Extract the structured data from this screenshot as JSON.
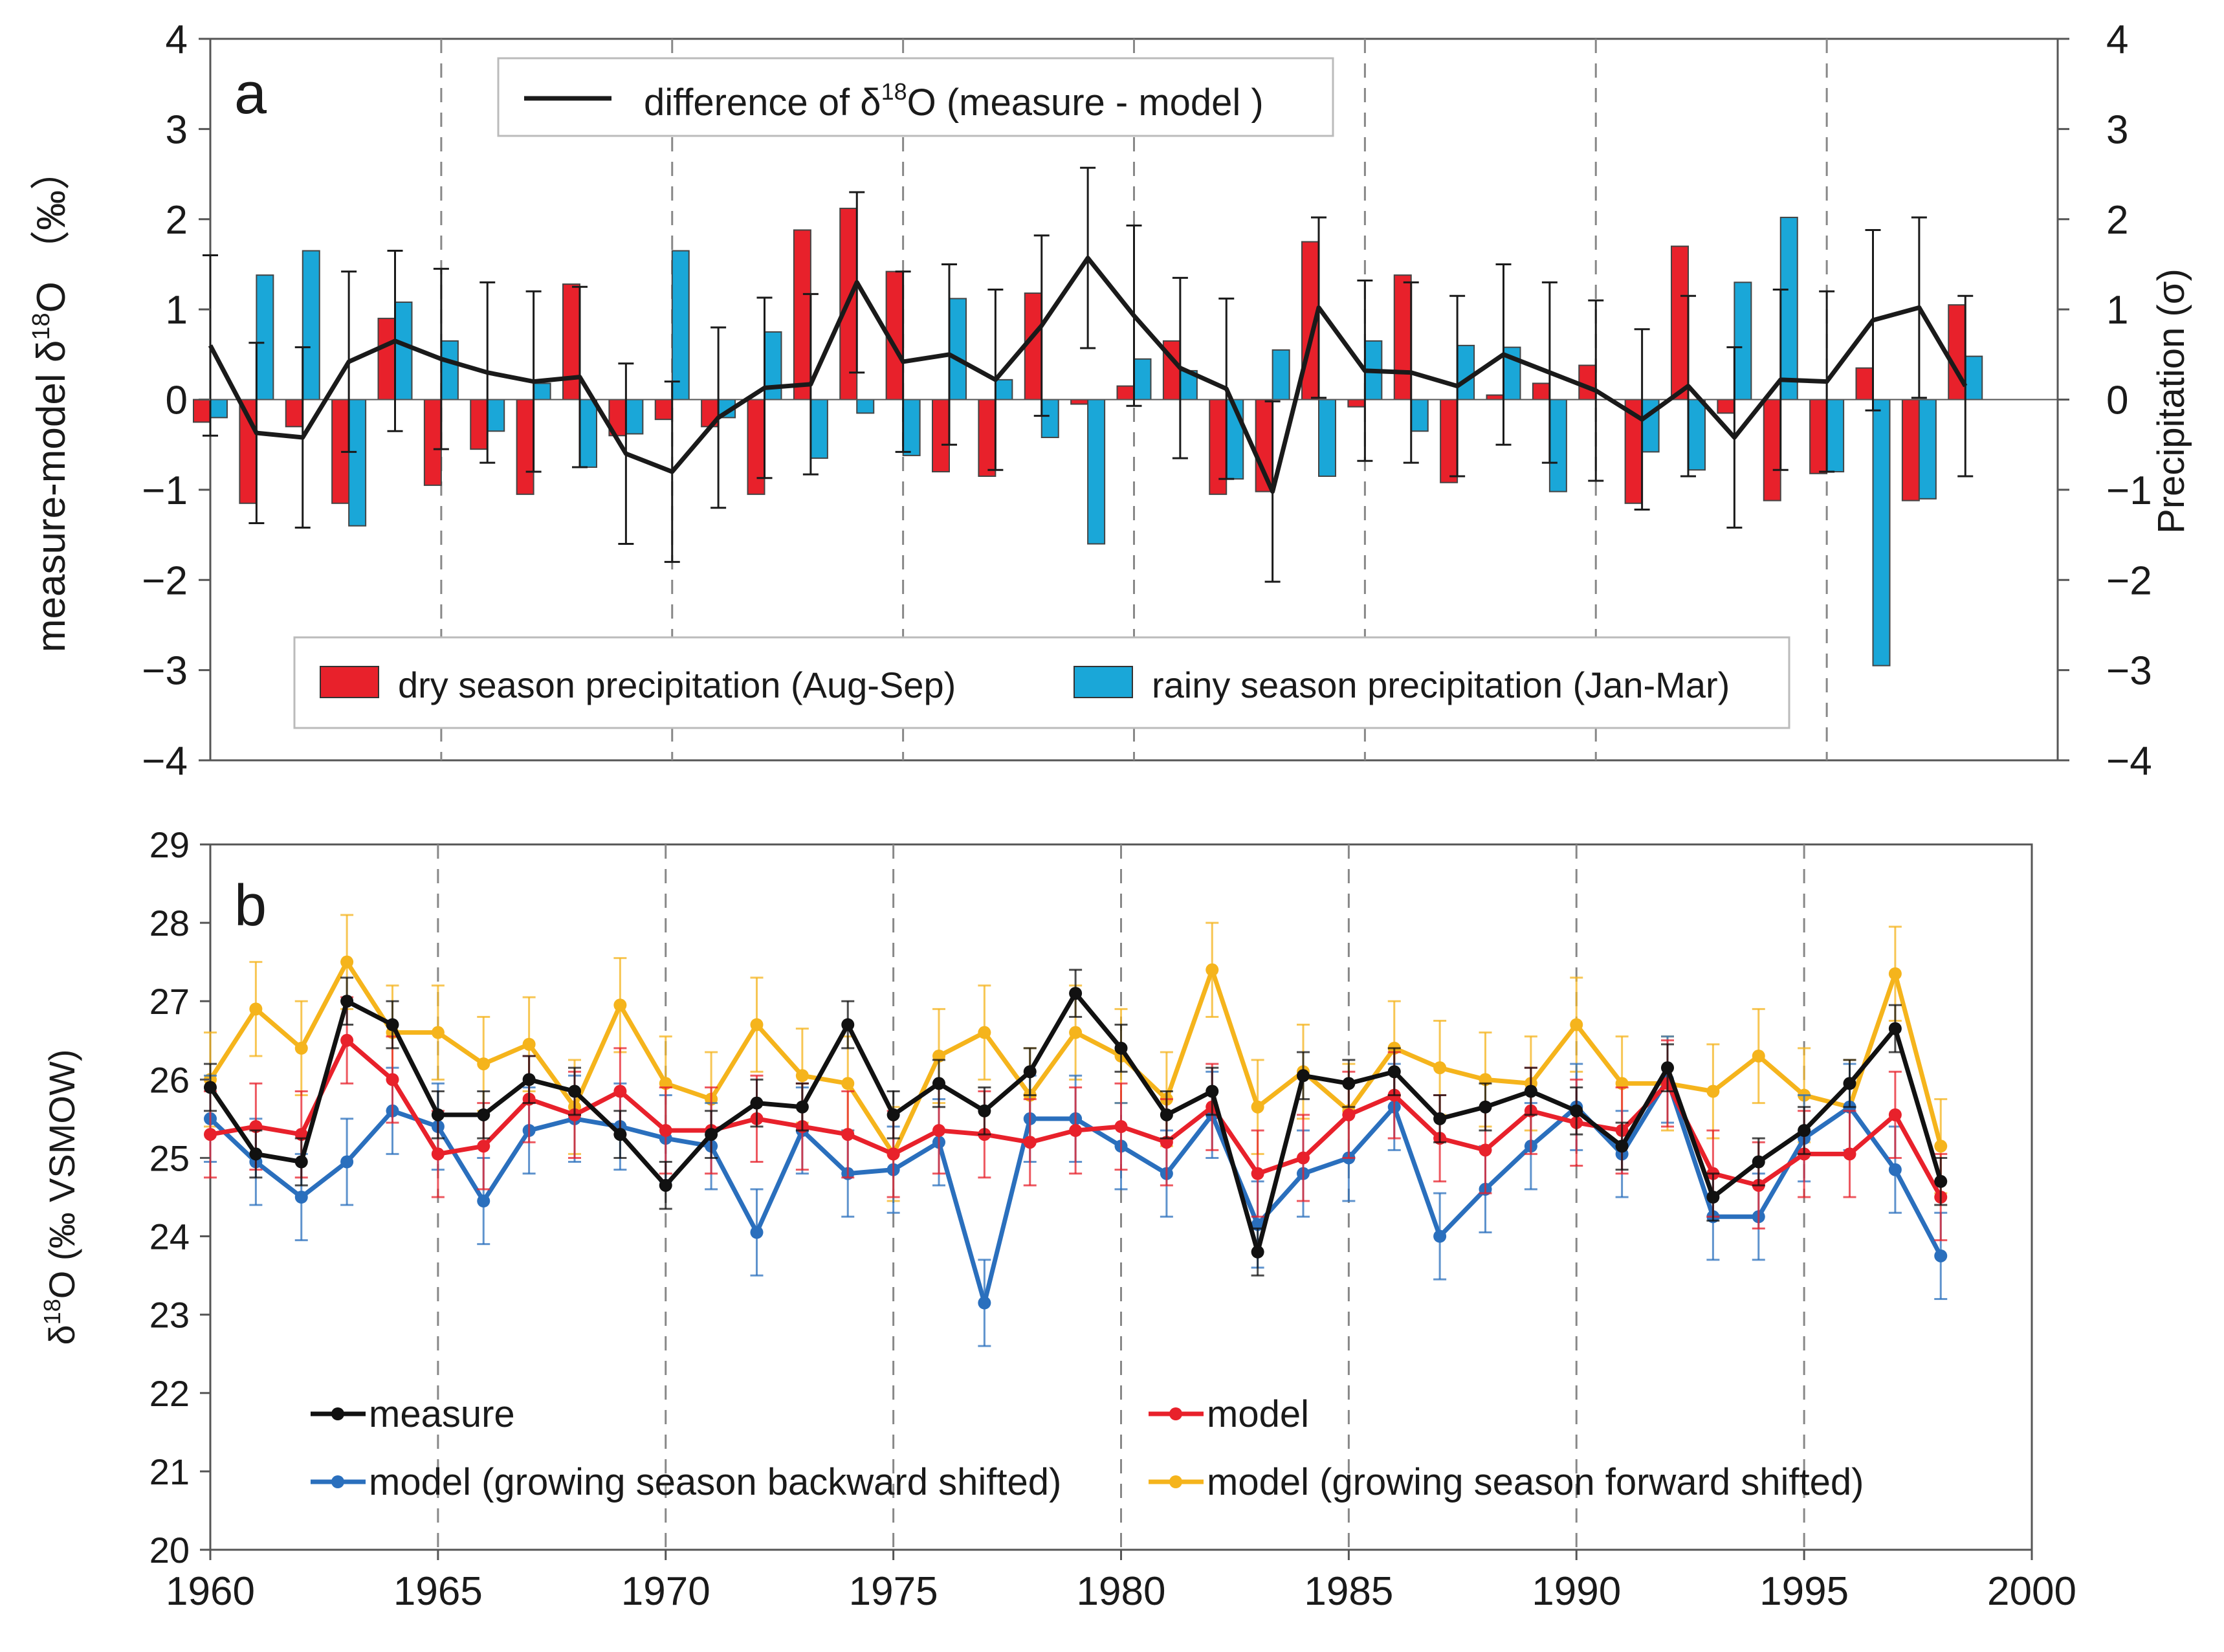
{
  "chart_data": [
    {
      "panel": "a",
      "type": "bar",
      "panel_label": "a",
      "ylabel_left": "measure-model δ¹⁸O （‰）",
      "ylabel_left_parts": [
        "measure-model  δ",
        "18",
        "O  （‰）"
      ],
      "ylabel_right": "Precipitation (σ)",
      "ylim": [
        -4,
        4
      ],
      "yticks": [
        -4,
        -3,
        -2,
        -1,
        0,
        1,
        2,
        3,
        4
      ],
      "ytick_labels": [
        "−4",
        "−3",
        "−2",
        "−1",
        "0",
        "1",
        "2",
        "3",
        "4"
      ],
      "xlim": [
        1960,
        2000
      ],
      "years": [
        1960,
        1961,
        1962,
        1963,
        1964,
        1965,
        1966,
        1967,
        1968,
        1969,
        1970,
        1971,
        1972,
        1973,
        1974,
        1975,
        1976,
        1977,
        1978,
        1979,
        1980,
        1981,
        1982,
        1983,
        1984,
        1985,
        1986,
        1987,
        1988,
        1989,
        1990,
        1991,
        1992,
        1993,
        1994,
        1995,
        1996,
        1997,
        1998
      ],
      "series": [
        {
          "name": "dry season precipitation (Aug-Sep)",
          "kind": "bar",
          "color": "#e8212b",
          "values": [
            -0.25,
            -1.15,
            -0.3,
            -1.15,
            0.9,
            -0.95,
            -0.55,
            -1.05,
            1.28,
            -0.4,
            -0.22,
            -0.3,
            -1.05,
            1.88,
            2.12,
            1.42,
            -0.8,
            -0.85,
            1.18,
            -0.05,
            0.15,
            0.65,
            -1.05,
            -1.02,
            1.75,
            -0.08,
            1.38,
            -0.92,
            0.05,
            0.18,
            0.38,
            -1.15,
            1.7,
            -0.15,
            -1.12,
            -0.82,
            0.35,
            -1.12,
            1.05
          ]
        },
        {
          "name": "rainy season precipitation (Jan-Mar)",
          "kind": "bar",
          "color": "#1aa7d8",
          "values": [
            -0.2,
            1.38,
            1.65,
            -1.4,
            1.08,
            0.65,
            -0.35,
            0.18,
            -0.75,
            -0.38,
            1.65,
            -0.2,
            0.75,
            -0.65,
            -0.15,
            -0.62,
            1.12,
            0.22,
            -0.42,
            -1.6,
            0.45,
            0.32,
            -0.88,
            0.55,
            -0.85,
            0.65,
            -0.35,
            0.6,
            0.58,
            -1.02,
            0.0,
            -0.58,
            -0.78,
            1.3,
            2.02,
            -0.8,
            -2.95,
            -1.1,
            0.48
          ]
        },
        {
          "name": "difference of δ¹⁸O (measure - model )",
          "legend_parts": [
            "difference of  δ",
            "18",
            "O (measure - model )"
          ],
          "kind": "line",
          "color": "#1a1a1a",
          "values": [
            0.6,
            -0.37,
            -0.42,
            0.42,
            0.65,
            0.45,
            0.3,
            0.2,
            0.25,
            -0.6,
            -0.8,
            -0.2,
            0.13,
            0.17,
            1.3,
            0.42,
            0.5,
            0.22,
            0.82,
            1.57,
            0.93,
            0.35,
            0.12,
            -1.02,
            1.02,
            0.32,
            0.3,
            0.15,
            0.5,
            0.3,
            0.1,
            -0.22,
            0.15,
            -0.42,
            0.22,
            0.2,
            0.88,
            1.02,
            0.15
          ],
          "error": 1.0
        }
      ],
      "legend_top": "top-center",
      "legend_bottom": "bottom-center",
      "dashed_gridlines_x": [
        1965,
        1970,
        1975,
        1980,
        1985,
        1990,
        1995
      ]
    },
    {
      "panel": "b",
      "type": "line",
      "panel_label": "b",
      "ylabel": "δ¹⁸O (‰ VSMOW)",
      "ylabel_parts": [
        "δ",
        "18",
        "O (‰ VSMOW)"
      ],
      "ylim": [
        20,
        29
      ],
      "yticks": [
        20,
        21,
        22,
        23,
        24,
        25,
        26,
        27,
        28,
        29
      ],
      "xlim": [
        1960,
        2000
      ],
      "xticks": [
        1960,
        1965,
        1970,
        1975,
        1980,
        1985,
        1990,
        1995,
        2000
      ],
      "years": [
        1960,
        1961,
        1962,
        1963,
        1964,
        1965,
        1966,
        1967,
        1968,
        1969,
        1970,
        1971,
        1972,
        1973,
        1974,
        1975,
        1976,
        1977,
        1978,
        1979,
        1980,
        1981,
        1982,
        1983,
        1984,
        1985,
        1986,
        1987,
        1988,
        1989,
        1990,
        1991,
        1992,
        1993,
        1994,
        1995,
        1996,
        1997,
        1998
      ],
      "series": [
        {
          "name": "measure",
          "color": "#111111",
          "values": [
            25.9,
            25.05,
            24.95,
            27.0,
            26.7,
            25.55,
            25.55,
            26.0,
            25.85,
            25.3,
            24.65,
            25.3,
            25.7,
            25.65,
            26.7,
            25.55,
            25.95,
            25.6,
            26.1,
            27.1,
            26.4,
            25.55,
            25.85,
            23.8,
            26.05,
            25.95,
            26.1,
            25.5,
            25.65,
            25.85,
            25.6,
            25.15,
            26.15,
            24.5,
            24.95,
            25.35,
            25.95,
            26.65,
            24.7
          ],
          "error": 0.3
        },
        {
          "name": "model",
          "color": "#e8212b",
          "values": [
            25.3,
            25.4,
            25.3,
            26.5,
            26.0,
            25.05,
            25.15,
            25.75,
            25.55,
            25.85,
            25.35,
            25.35,
            25.5,
            25.4,
            25.3,
            25.05,
            25.35,
            25.3,
            25.2,
            25.35,
            25.4,
            25.2,
            25.65,
            24.8,
            25.0,
            25.55,
            25.8,
            25.25,
            25.1,
            25.6,
            25.45,
            25.35,
            25.95,
            24.8,
            24.65,
            25.05,
            25.05,
            25.55,
            24.5
          ],
          "error": 0.55
        },
        {
          "name": "model (growing season backward shifted)",
          "color": "#2a6fbd",
          "values": [
            25.5,
            24.95,
            24.5,
            24.95,
            25.6,
            25.4,
            24.45,
            25.35,
            25.5,
            25.4,
            25.25,
            25.15,
            24.05,
            25.35,
            24.8,
            24.85,
            25.2,
            23.15,
            25.5,
            25.5,
            25.15,
            24.8,
            25.55,
            24.15,
            24.8,
            25.0,
            25.65,
            24.0,
            24.6,
            25.15,
            25.65,
            25.05,
            26.0,
            24.25,
            24.25,
            25.25,
            25.65,
            24.85,
            23.75
          ],
          "error": 0.55
        },
        {
          "name": "model (growing season forward shifted)",
          "color": "#f5b41c",
          "values": [
            26.0,
            26.9,
            26.4,
            27.5,
            26.6,
            26.6,
            26.2,
            26.45,
            25.65,
            26.95,
            25.95,
            25.75,
            26.7,
            26.05,
            25.95,
            25.05,
            26.3,
            26.6,
            25.8,
            26.6,
            26.3,
            25.75,
            27.4,
            25.65,
            26.1,
            25.6,
            26.4,
            26.15,
            26.0,
            25.95,
            26.7,
            25.95,
            25.95,
            25.85,
            26.3,
            25.8,
            25.65,
            27.35,
            25.15
          ],
          "error": 0.6
        }
      ],
      "legend": "bottom-left",
      "dashed_gridlines_x": [
        1965,
        1970,
        1975,
        1980,
        1985,
        1990,
        1995
      ]
    }
  ]
}
